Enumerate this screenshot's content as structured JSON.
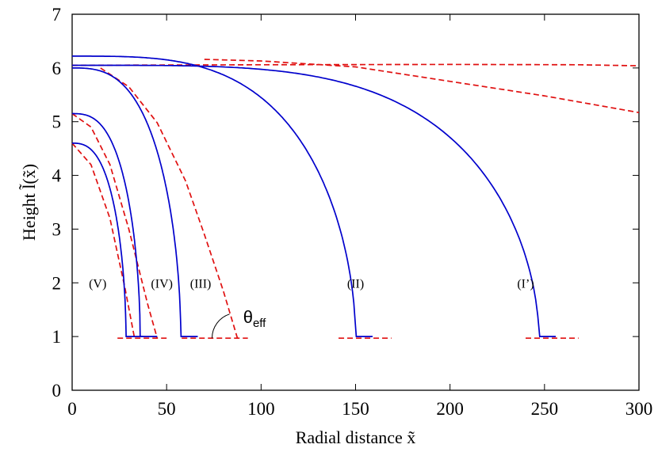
{
  "chart_data": {
    "type": "line",
    "xlabel": "Radial distance x̃",
    "ylabel": "Height l̃(x̃)",
    "xlim": [
      0,
      300
    ],
    "ylim": [
      0,
      7
    ],
    "xticks": [
      "0",
      "50",
      "100",
      "150",
      "200",
      "250",
      "300"
    ],
    "yticks": [
      "0",
      "1",
      "2",
      "3",
      "4",
      "5",
      "6",
      "7"
    ],
    "grid": false,
    "colors": {
      "profile": "#0000cc",
      "fit": "#e01010"
    },
    "annotation": {
      "theta_symbol": "θ",
      "theta_subscript": "eff"
    },
    "profiles": [
      {
        "label": "(I’)",
        "label_x": 240,
        "label_y": 2.0,
        "h0": 6.05,
        "start_x": 0,
        "edge_x": 247,
        "width": 45,
        "p": 4
      },
      {
        "label": "(II)",
        "label_x": 150,
        "label_y": 2.0,
        "h0": 6.22,
        "start_x": 0,
        "edge_x": 150,
        "width": 100,
        "p": 3.4
      },
      {
        "label": "(III)",
        "label_x": 68,
        "label_y": 2.0,
        "h0": 6.0,
        "start_x": 0,
        "edge_x": 57.5,
        "width": 60,
        "p": 2.9
      },
      {
        "label": "(IV)",
        "label_x": 47.5,
        "label_y": 2.0,
        "h0": 5.15,
        "start_x": 0,
        "edge_x": 36,
        "width": 38,
        "p": 2.8
      },
      {
        "label": "(V)",
        "label_x": 13.5,
        "label_y": 2.0,
        "h0": 4.6,
        "start_x": 0,
        "edge_x": 28.5,
        "width": 32,
        "p": 2.7
      }
    ],
    "fits": [
      {
        "name": "fit (I’)",
        "points": [
          [
            0,
            6.05
          ],
          [
            100,
            6.06
          ],
          [
            200,
            6.065
          ],
          [
            268,
            6.06
          ],
          [
            300,
            6.04
          ]
        ]
      },
      {
        "name": "fit (II)",
        "points": [
          [
            70,
            6.16
          ],
          [
            100,
            6.13
          ],
          [
            150,
            6.02
          ],
          [
            200,
            5.75
          ],
          [
            250,
            5.48
          ],
          [
            300,
            5.17
          ]
        ]
      },
      {
        "name": "fit (III)",
        "points": [
          [
            15,
            6.0
          ],
          [
            30,
            5.65
          ],
          [
            45,
            4.98
          ],
          [
            60,
            3.9
          ],
          [
            70,
            2.9
          ],
          [
            80,
            1.85
          ],
          [
            87.5,
            0.97
          ]
        ]
      },
      {
        "name": "fit (IV)",
        "points": [
          [
            0,
            5.15
          ],
          [
            10,
            4.9
          ],
          [
            20,
            4.2
          ],
          [
            30,
            3.0
          ],
          [
            40,
            1.6
          ],
          [
            45,
            0.97
          ]
        ]
      },
      {
        "name": "fit (V)",
        "points": [
          [
            0,
            4.6
          ],
          [
            10,
            4.2
          ],
          [
            20,
            3.2
          ],
          [
            28,
            1.9
          ],
          [
            33,
            0.97
          ]
        ]
      }
    ],
    "baselines": [
      {
        "x_start": 24,
        "x_end": 50,
        "y": 0.97
      },
      {
        "x_start": 58,
        "x_end": 93,
        "y": 0.97
      },
      {
        "x_start": 141,
        "x_end": 169,
        "y": 0.97
      },
      {
        "x_start": 240,
        "x_end": 268,
        "y": 0.97
      }
    ]
  }
}
